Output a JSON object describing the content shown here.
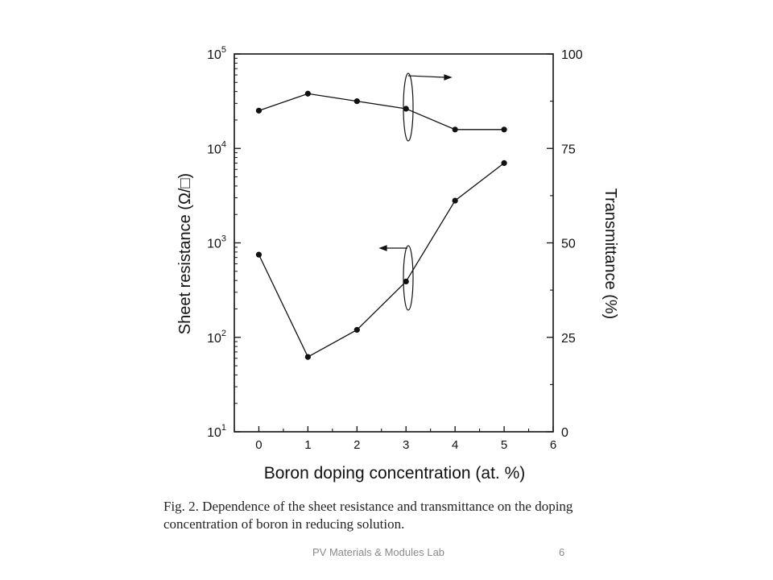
{
  "chart_data": {
    "type": "line",
    "x": [
      0,
      1,
      2,
      3,
      4,
      5
    ],
    "xlim": [
      -0.5,
      6
    ],
    "x_ticks": [
      "0",
      "1",
      "2",
      "3",
      "4",
      "5",
      "6"
    ],
    "xlabel": "Boron doping concentration (at. %)",
    "ylabel_left": "Sheet resistance  (Ω/□)",
    "ylabel_right": "Transmittance (%)",
    "y_left_scale": "log",
    "y_left_lim": [
      10,
      100000
    ],
    "y_left_ticks": [
      {
        "base": "10",
        "exp": "1"
      },
      {
        "base": "10",
        "exp": "2"
      },
      {
        "base": "10",
        "exp": "3"
      },
      {
        "base": "10",
        "exp": "4"
      },
      {
        "base": "10",
        "exp": "5"
      }
    ],
    "y_right_lim": [
      0,
      100
    ],
    "y_right_ticks": [
      "0",
      "25",
      "50",
      "75",
      "100"
    ],
    "series": [
      {
        "axis": "left",
        "values": [
          750,
          62,
          120,
          390,
          2800,
          7000
        ],
        "color": "#111111"
      },
      {
        "axis": "right",
        "values": [
          85,
          89.5,
          87.5,
          85.5,
          80,
          80
        ],
        "color": "#111111"
      }
    ],
    "grid": false
  },
  "caption": {
    "line1": "Fig. 2. Dependence of the sheet resistance and transmittance on the doping",
    "line2": "concentration of boron in reducing solution."
  },
  "footer": {
    "lab": "PV Materials & Modules Lab",
    "page": "6"
  }
}
